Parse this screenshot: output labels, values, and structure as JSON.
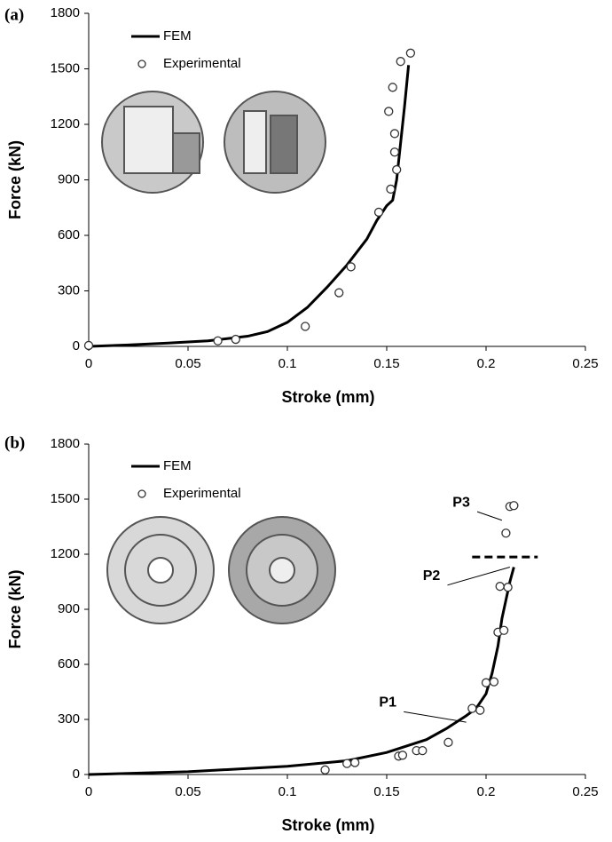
{
  "chart_data": [
    {
      "type": "line",
      "panel_label": "(a)",
      "x_label": "Stroke (mm)",
      "y_label": "Force (kN)",
      "xlim": [
        0,
        0.25
      ],
      "xticks": [
        0,
        0.05,
        0.1,
        0.15,
        0.2,
        0.25
      ],
      "ylim": [
        0,
        1800
      ],
      "yticks": [
        0,
        300,
        600,
        900,
        1200,
        1500,
        1800
      ],
      "legend": "upper left",
      "series": [
        {
          "name": "FEM",
          "color": "#000000",
          "mode": "line",
          "x": [
            0,
            0.02,
            0.04,
            0.06,
            0.08,
            0.09,
            0.1,
            0.11,
            0.12,
            0.13,
            0.14,
            0.145,
            0.15,
            0.153,
            0.155,
            0.157,
            0.159,
            0.161
          ],
          "values": [
            0,
            8,
            18,
            30,
            55,
            80,
            130,
            210,
            320,
            440,
            580,
            680,
            760,
            790,
            900,
            1100,
            1300,
            1520
          ]
        },
        {
          "name": "Experimental",
          "color": "#333333",
          "mode": "markers",
          "x": [
            0,
            0.065,
            0.074,
            0.109,
            0.126,
            0.132,
            0.146,
            0.152,
            0.155,
            0.154,
            0.154,
            0.151,
            0.153,
            0.157,
            0.162
          ],
          "values": [
            5,
            30,
            38,
            108,
            290,
            430,
            725,
            850,
            955,
            1050,
            1150,
            1270,
            1400,
            1540,
            1585
          ]
        }
      ]
    },
    {
      "type": "line",
      "panel_label": "(b)",
      "x_label": "Stroke (mm)",
      "y_label": "Force (kN)",
      "xlim": [
        0,
        0.25
      ],
      "xticks": [
        0,
        0.05,
        0.1,
        0.15,
        0.2,
        0.25
      ],
      "ylim": [
        0,
        1800
      ],
      "yticks": [
        0,
        300,
        600,
        900,
        1200,
        1500,
        1800
      ],
      "legend": "upper left",
      "series": [
        {
          "name": "FEM",
          "color": "#000000",
          "mode": "line",
          "x": [
            0,
            0.05,
            0.1,
            0.13,
            0.15,
            0.17,
            0.18,
            0.19,
            0.195,
            0.2,
            0.203,
            0.206,
            0.208,
            0.21,
            0.212,
            0.214
          ],
          "values": [
            0,
            15,
            45,
            75,
            120,
            190,
            250,
            320,
            360,
            440,
            550,
            700,
            850,
            950,
            1050,
            1130
          ]
        },
        {
          "name": "Experimental",
          "color": "#333333",
          "mode": "markers",
          "x": [
            0.119,
            0.13,
            0.134,
            0.156,
            0.158,
            0.165,
            0.168,
            0.181,
            0.193,
            0.197,
            0.2,
            0.204,
            0.206,
            0.209,
            0.207,
            0.211,
            0.21,
            0.212,
            0.214
          ],
          "values": [
            25,
            60,
            65,
            100,
            105,
            130,
            130,
            175,
            360,
            350,
            500,
            505,
            775,
            785,
            1025,
            1020,
            1315,
            1460,
            1465
          ]
        }
      ],
      "dashed_line": {
        "x": [
          0.193,
          0.226
        ],
        "values": [
          1185,
          1185
        ]
      },
      "annotations": [
        "P1",
        "P2",
        "P3"
      ]
    }
  ]
}
